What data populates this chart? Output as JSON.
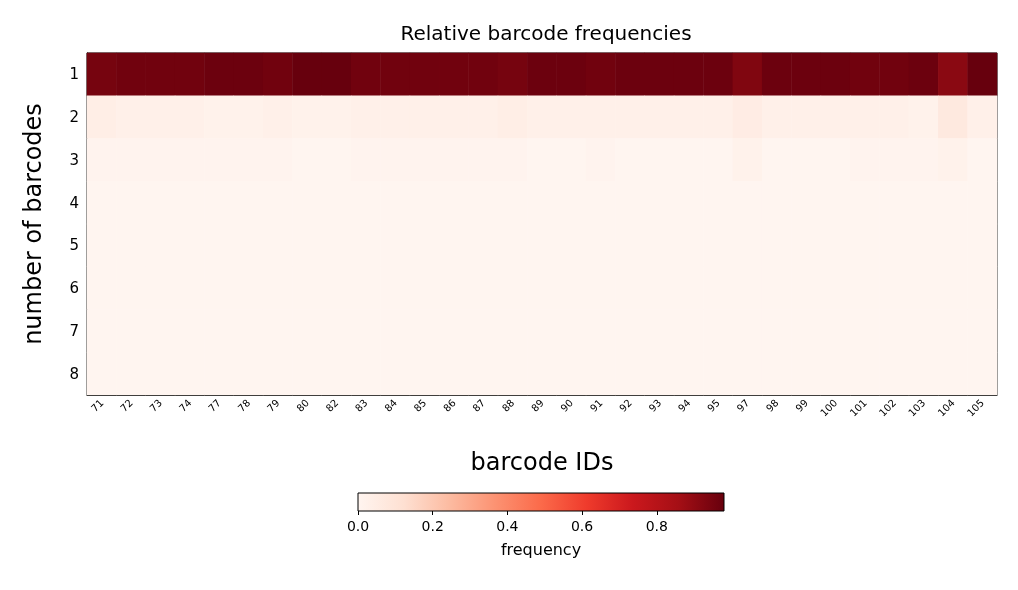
{
  "chart_data": {
    "type": "heatmap",
    "title": "Relative barcode frequencies",
    "xlabel": "barcode IDs",
    "ylabel": "number of barcodes",
    "clabel": "frequency",
    "categories": [
      "71",
      "72",
      "73",
      "74",
      "77",
      "78",
      "79",
      "80",
      "82",
      "83",
      "84",
      "85",
      "86",
      "87",
      "88",
      "89",
      "90",
      "91",
      "92",
      "93",
      "94",
      "95",
      "97",
      "98",
      "99",
      "100",
      "101",
      "102",
      "103",
      "104",
      "105"
    ],
    "y_categories": [
      "1",
      "2",
      "3",
      "4",
      "5",
      "6",
      "7",
      "8"
    ],
    "cells": [
      [
        0.95,
        0.96,
        0.96,
        0.96,
        0.97,
        0.97,
        0.96,
        0.98,
        0.98,
        0.96,
        0.96,
        0.96,
        0.96,
        0.96,
        0.95,
        0.97,
        0.97,
        0.96,
        0.97,
        0.97,
        0.97,
        0.97,
        0.93,
        0.97,
        0.97,
        0.97,
        0.96,
        0.96,
        0.97,
        0.91,
        0.98
      ],
      [
        0.04,
        0.03,
        0.03,
        0.03,
        0.02,
        0.02,
        0.03,
        0.02,
        0.02,
        0.03,
        0.03,
        0.03,
        0.03,
        0.03,
        0.04,
        0.03,
        0.03,
        0.03,
        0.03,
        0.03,
        0.03,
        0.03,
        0.05,
        0.03,
        0.03,
        0.03,
        0.03,
        0.03,
        0.02,
        0.07,
        0.03
      ],
      [
        0.01,
        0.01,
        0.01,
        0.01,
        0.01,
        0.01,
        0.01,
        0,
        0,
        0.01,
        0.01,
        0.01,
        0.01,
        0.01,
        0.01,
        0,
        0,
        0.01,
        0,
        0,
        0,
        0,
        0.02,
        0,
        0,
        0,
        0.01,
        0.01,
        0.01,
        0.02,
        0
      ],
      [
        0,
        0,
        0,
        0,
        0,
        0,
        0,
        0,
        0,
        0,
        0,
        0,
        0,
        0,
        0,
        0,
        0,
        0,
        0,
        0,
        0,
        0,
        0,
        0,
        0,
        0,
        0,
        0,
        0,
        0,
        0
      ],
      [
        0,
        0,
        0,
        0,
        0,
        0,
        0,
        0,
        0,
        0,
        0,
        0,
        0,
        0,
        0,
        0,
        0,
        0,
        0,
        0,
        0,
        0,
        0,
        0,
        0,
        0,
        0,
        0,
        0,
        0,
        0
      ],
      [
        0,
        0,
        0,
        0,
        0,
        0,
        0,
        0,
        0,
        0,
        0,
        0,
        0,
        0,
        0,
        0,
        0,
        0,
        0,
        0,
        0,
        0,
        0,
        0,
        0,
        0,
        0,
        0,
        0,
        0,
        0
      ],
      [
        0,
        0,
        0,
        0,
        0,
        0,
        0,
        0,
        0,
        0,
        0,
        0,
        0,
        0,
        0,
        0,
        0,
        0,
        0,
        0,
        0,
        0,
        0,
        0,
        0,
        0,
        0,
        0,
        0,
        0,
        0
      ],
      [
        0,
        0,
        0,
        0,
        0,
        0,
        0,
        0,
        0,
        0,
        0,
        0,
        0,
        0,
        0,
        0,
        0,
        0,
        0,
        0,
        0,
        0,
        0,
        0,
        0,
        0,
        0,
        0,
        0,
        0,
        0
      ]
    ],
    "clim": [
      0,
      0.98
    ],
    "cticks": [
      {
        "value": 0,
        "label": "0.0"
      },
      0.2,
      0.4,
      0.6,
      0.8
    ]
  }
}
